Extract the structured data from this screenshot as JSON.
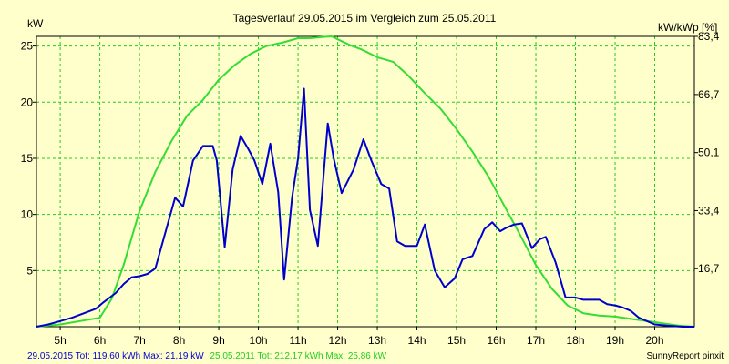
{
  "chart_data": {
    "type": "line",
    "title": "Tagesverlauf 29.05.2015 im Vergleich zum 25.05.2011",
    "ylabel_left": "kW",
    "ylabel_right": "kW/kWp [%]",
    "xlim": [
      4.4,
      21.0
    ],
    "ylim": [
      0,
      25.86
    ],
    "grid": true,
    "x_ticks": [
      5,
      6,
      7,
      8,
      9,
      10,
      11,
      12,
      13,
      14,
      15,
      16,
      17,
      18,
      19,
      20
    ],
    "x_tick_labels": [
      "5h",
      "6h",
      "7h",
      "8h",
      "9h",
      "10h",
      "11h",
      "12h",
      "13h",
      "14h",
      "15h",
      "16h",
      "17h",
      "18h",
      "19h",
      "20h"
    ],
    "y_ticks_left": [
      5,
      10,
      15,
      20,
      25
    ],
    "y_tick_labels_left": [
      "5",
      "10",
      "15",
      "20",
      "25"
    ],
    "y_ticks_right_at": [
      5.17,
      10.34,
      15.51,
      20.68,
      25.86
    ],
    "y_tick_labels_right": [
      "16,7",
      "33,4",
      "50,1",
      "66,7",
      "83,4"
    ],
    "series": [
      {
        "name": "29.05.2015",
        "color": "#0000cc",
        "x": [
          4.4,
          4.7,
          5.0,
          5.3,
          5.6,
          5.9,
          6.1,
          6.4,
          6.6,
          6.8,
          7.0,
          7.2,
          7.4,
          7.67,
          7.9,
          8.1,
          8.35,
          8.6,
          8.85,
          8.95,
          9.15,
          9.35,
          9.55,
          9.75,
          9.9,
          10.1,
          10.3,
          10.5,
          10.65,
          10.85,
          11.0,
          11.15,
          11.3,
          11.5,
          11.75,
          11.9,
          12.1,
          12.4,
          12.65,
          12.85,
          13.1,
          13.3,
          13.5,
          13.7,
          14.0,
          14.2,
          14.45,
          14.7,
          14.95,
          15.15,
          15.4,
          15.7,
          15.9,
          16.1,
          16.25,
          16.45,
          16.65,
          16.9,
          17.1,
          17.25,
          17.5,
          17.75,
          17.9,
          18.0,
          18.2,
          18.3,
          18.6,
          18.8,
          19.0,
          19.2,
          19.4,
          19.6,
          19.8,
          20.0,
          20.3,
          20.7,
          21.0
        ],
        "values": [
          0,
          0.2,
          0.5,
          0.8,
          1.2,
          1.6,
          2.2,
          3.0,
          3.8,
          4.4,
          4.5,
          4.7,
          5.2,
          8.6,
          11.5,
          10.7,
          14.8,
          16.1,
          16.1,
          14.8,
          7.1,
          14.0,
          17.0,
          15.8,
          14.8,
          12.7,
          16.3,
          12.0,
          4.2,
          11.5,
          15.0,
          21.2,
          10.4,
          7.2,
          18.1,
          15.0,
          11.9,
          14.0,
          16.7,
          14.8,
          12.7,
          12.3,
          7.6,
          7.2,
          7.2,
          9.1,
          5.0,
          3.5,
          4.3,
          6.0,
          6.3,
          8.7,
          9.3,
          8.5,
          8.8,
          9.1,
          9.2,
          7.0,
          7.8,
          8.0,
          5.7,
          2.6,
          2.6,
          2.6,
          2.4,
          2.4,
          2.4,
          2.0,
          1.9,
          1.7,
          1.4,
          0.8,
          0.5,
          0.2,
          0.1,
          0.0,
          0.0
        ],
        "footer_label": "29.05.2015 Tot: 119,60 kWh Max: 21,19 kW"
      },
      {
        "name": "25.05.2011",
        "color": "#33dd33",
        "x": [
          4.4,
          5.0,
          5.5,
          6.0,
          6.3,
          6.6,
          7.0,
          7.4,
          7.8,
          8.2,
          8.6,
          9.0,
          9.4,
          9.8,
          10.2,
          10.6,
          11.0,
          11.3,
          11.6,
          11.85,
          12.0,
          12.3,
          12.6,
          13.0,
          13.4,
          13.8,
          14.2,
          14.6,
          15.0,
          15.4,
          15.8,
          16.2,
          16.6,
          17.0,
          17.4,
          17.8,
          18.2,
          18.6,
          19.0,
          19.4,
          19.8,
          20.2,
          20.6,
          21.0
        ],
        "values": [
          0,
          0.2,
          0.5,
          0.8,
          2.5,
          5.5,
          10.3,
          13.8,
          16.5,
          18.8,
          20.2,
          22.0,
          23.3,
          24.3,
          25.0,
          25.3,
          25.7,
          25.7,
          25.8,
          25.86,
          25.6,
          25.1,
          24.7,
          24.0,
          23.6,
          22.3,
          20.8,
          19.4,
          17.6,
          15.6,
          13.4,
          10.8,
          8.2,
          5.5,
          3.4,
          1.9,
          1.2,
          1.0,
          0.9,
          0.7,
          0.5,
          0.3,
          0.1,
          0.0
        ],
        "footer_label": "25.05.2011 Tot: 212,17 kWh Max: 25,86 kW"
      }
    ]
  },
  "footer": {
    "brand": "SunnyReport pinxit"
  }
}
